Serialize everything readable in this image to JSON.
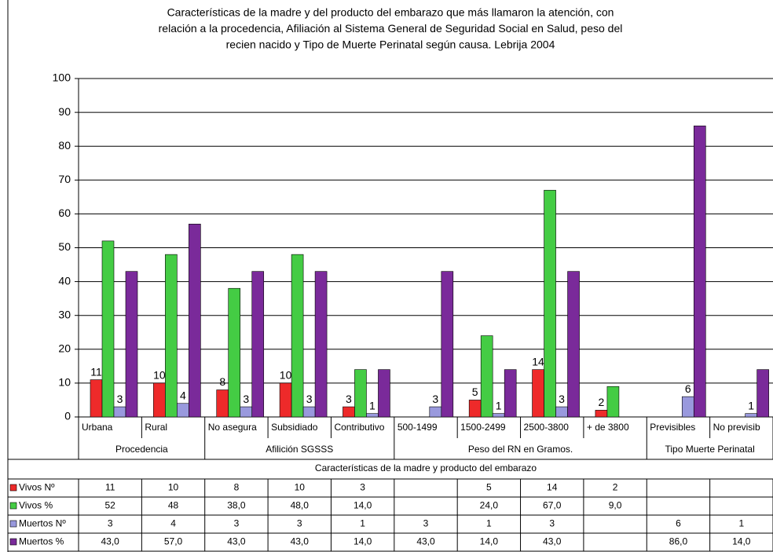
{
  "chart_data": {
    "type": "bar",
    "title": [
      "Características de la madre y del producto del embarazo que más llamaron la atención, con",
      "relación  a la procedencia, Afiliación al Sistema General de Seguridad Social en Salud, peso del",
      "recien nacido y Tipo de Muerte  Perinatal según  causa. Lebrija 2004"
    ],
    "x_label": "Características de la madre y producto del embarazo",
    "categories": [
      "Urbana",
      "Rural",
      "No asegura",
      "Subsidiado",
      "Contributivo",
      "500-1499",
      "1500-2499",
      "2500-3800",
      "+ de 3800",
      "Previsibles",
      "No previsib"
    ],
    "groups": [
      {
        "name": "Procedencia",
        "size": 2
      },
      {
        "name": "Afilición SGSSS",
        "size": 3
      },
      {
        "name": "Peso del RN en Gramos.",
        "size": 4
      },
      {
        "name": "Tipo Muerte Perinatal",
        "size": 2
      }
    ],
    "series": [
      {
        "name": "Vivos Nº",
        "color": "#ee2a2a",
        "values": [
          11,
          10,
          8,
          10,
          3,
          null,
          5,
          14,
          2,
          null,
          null
        ]
      },
      {
        "name": "Vivos %",
        "color": "#44cc44",
        "values": [
          52,
          48,
          38,
          48,
          14,
          null,
          24,
          67,
          9,
          null,
          null
        ],
        "value_labels": [
          "52",
          "48",
          "38,0",
          "48,0",
          "14,0",
          null,
          "24,0",
          "67,0",
          "9,0",
          null,
          null
        ]
      },
      {
        "name": "Muertos Nº",
        "color": "#9999dd",
        "values": [
          3,
          4,
          3,
          3,
          1,
          3,
          1,
          3,
          null,
          6,
          1
        ]
      },
      {
        "name": "Muertos %",
        "color": "#7a2a9a",
        "values": [
          43,
          57,
          43,
          43,
          14,
          43,
          14,
          43,
          null,
          86,
          14
        ],
        "value_labels": [
          "43,0",
          "57,0",
          "43,0",
          "43,0",
          "14,0",
          "43,0",
          "14,0",
          "43,0",
          null,
          "86,0",
          "14,0"
        ]
      }
    ],
    "ylim": [
      0,
      100
    ],
    "yticks": [
      0,
      10,
      20,
      30,
      40,
      50,
      60,
      70,
      80,
      90,
      100
    ],
    "grid": true
  }
}
